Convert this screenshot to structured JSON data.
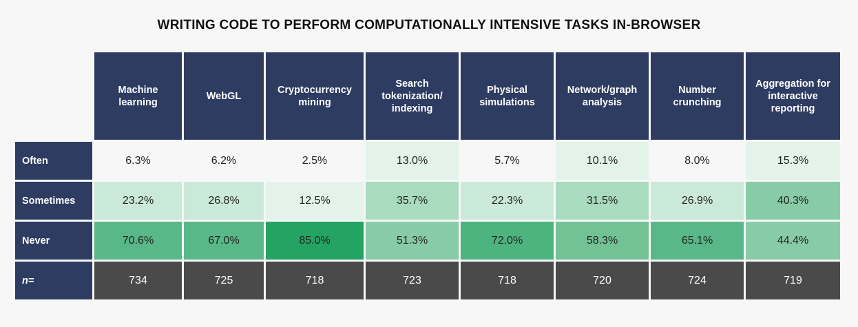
{
  "title": "WRITING CODE TO PERFORM COMPUTATIONALLY INTENSIVE TASKS IN-BROWSER",
  "chart_data": {
    "type": "table",
    "title": "WRITING CODE TO PERFORM COMPUTATIONALLY INTENSIVE TASKS IN-BROWSER",
    "columns": [
      "Machine learning",
      "WebGL",
      "Cryptocurrency mining",
      "Search tokenization/ indexing",
      "Physical simulations",
      "Network/graph analysis",
      "Number crunching",
      "Aggregation for interactive reporting"
    ],
    "rows": [
      {
        "label": "Often",
        "values": [
          6.3,
          6.2,
          2.5,
          13.0,
          5.7,
          10.1,
          8.0,
          15.3
        ],
        "display": [
          "6.3%",
          "6.2%",
          "2.5%",
          "13.0%",
          "5.7%",
          "10.1%",
          "8.0%",
          "15.3%"
        ],
        "colors": [
          "#f7f7f7",
          "#f7f7f7",
          "#f7f7f7",
          "#e3f3ea",
          "#f7f7f7",
          "#e3f3ea",
          "#f7f7f7",
          "#e3f3ea"
        ]
      },
      {
        "label": "Sometimes",
        "values": [
          23.2,
          26.8,
          12.5,
          35.7,
          22.3,
          31.5,
          26.9,
          40.3
        ],
        "display": [
          "23.2%",
          "26.8%",
          "12.5%",
          "35.7%",
          "22.3%",
          "31.5%",
          "26.9%",
          "40.3%"
        ],
        "colors": [
          "#cbe9d8",
          "#cbe9d8",
          "#e3f3ea",
          "#a9dbbf",
          "#cbe9d8",
          "#a9dbbf",
          "#cbe9d8",
          "#88cca7"
        ]
      },
      {
        "label": "Never",
        "values": [
          70.6,
          67.0,
          85.0,
          51.3,
          72.0,
          58.3,
          65.1,
          44.4
        ],
        "display": [
          "70.6%",
          "67.0%",
          "85.0%",
          "51.3%",
          "72.0%",
          "58.3%",
          "65.1%",
          "44.4%"
        ],
        "colors": [
          "#58b887",
          "#58b887",
          "#24a463",
          "#88cca7",
          "#4db37f",
          "#72c296",
          "#58b887",
          "#88cca7"
        ]
      },
      {
        "label": "n=",
        "values": [
          734,
          725,
          718,
          723,
          718,
          720,
          724,
          719
        ],
        "display": [
          "734",
          "725",
          "718",
          "723",
          "718",
          "720",
          "724",
          "719"
        ],
        "colors": [
          "#4a4a4a",
          "#4a4a4a",
          "#4a4a4a",
          "#4a4a4a",
          "#4a4a4a",
          "#4a4a4a",
          "#4a4a4a",
          "#4a4a4a"
        ]
      }
    ]
  }
}
